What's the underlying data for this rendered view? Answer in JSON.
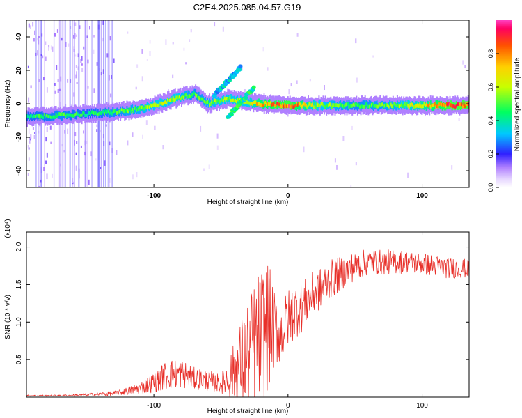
{
  "title": "C2E4.2025.085.04.57.G19",
  "chart_data": [
    {
      "type": "heatmap",
      "title": "C2E4.2025.085.04.57.G19",
      "xlabel": "Height of straight line (km)",
      "ylabel": "Frequency (Hz)",
      "xlim": [
        -195,
        135
      ],
      "ylim": [
        -50,
        50
      ],
      "xticks": [
        -100,
        0,
        100
      ],
      "yticks": [
        -40,
        -20,
        0,
        20,
        40
      ],
      "colorbar": {
        "label": "Normalized spectral amplitude",
        "range": [
          0,
          1
        ],
        "ticks": [
          0.0,
          0.2,
          0.4,
          0.6,
          0.8
        ]
      },
      "ridge": [
        {
          "x": -195,
          "f": -8,
          "a": 0.45
        },
        {
          "x": -170,
          "f": -7,
          "a": 0.5
        },
        {
          "x": -150,
          "f": -6,
          "a": 0.45
        },
        {
          "x": -130,
          "f": -5,
          "a": 0.5
        },
        {
          "x": -110,
          "f": -3,
          "a": 0.55
        },
        {
          "x": -100,
          "f": -1,
          "a": 0.6
        },
        {
          "x": -85,
          "f": 3,
          "a": 0.6
        },
        {
          "x": -70,
          "f": 6,
          "a": 0.5
        },
        {
          "x": -60,
          "f": 0,
          "a": 0.55
        },
        {
          "x": -45,
          "f": 3,
          "a": 0.6
        },
        {
          "x": -30,
          "f": 1,
          "a": 0.6
        },
        {
          "x": -20,
          "f": 0,
          "a": 0.8
        },
        {
          "x": 0,
          "f": -1,
          "a": 0.9
        },
        {
          "x": 20,
          "f": -1,
          "a": 0.6
        },
        {
          "x": 50,
          "f": -1,
          "a": 0.5
        },
        {
          "x": 80,
          "f": -1,
          "a": 0.55
        },
        {
          "x": 100,
          "f": -1,
          "a": 0.7
        },
        {
          "x": 120,
          "f": -1,
          "a": 0.9
        },
        {
          "x": 135,
          "f": -1,
          "a": 0.9
        }
      ],
      "branches": [
        {
          "x": [
            -55,
            -35
          ],
          "f": [
            5,
            22
          ],
          "a": 0.35
        },
        {
          "x": [
            -45,
            -25
          ],
          "f": [
            -8,
            10
          ],
          "a": 0.45
        }
      ]
    },
    {
      "type": "line",
      "title": "",
      "xlabel": "Height of straight line (km)",
      "ylabel": "SNR (10 * v/v)",
      "unit": "(x10⁴)",
      "xlim": [
        -195,
        135
      ],
      "ylim": [
        0,
        2.2
      ],
      "xticks": [
        -100,
        0,
        100
      ],
      "yticks": [
        0.5,
        1.0,
        1.5,
        2.0
      ],
      "series": [
        {
          "name": "SNR",
          "color": "#e8302a",
          "x": [
            -195,
            -170,
            -150,
            -130,
            -120,
            -110,
            -100,
            -90,
            -80,
            -70,
            -60,
            -50,
            -45,
            -40,
            -35,
            -30,
            -25,
            -20,
            -15,
            -10,
            -5,
            0,
            5,
            10,
            15,
            20,
            25,
            30,
            35,
            40,
            45,
            50,
            60,
            70,
            80,
            90,
            100,
            110,
            120,
            130,
            135
          ],
          "values": [
            0.02,
            0.02,
            0.03,
            0.05,
            0.08,
            0.12,
            0.2,
            0.3,
            0.32,
            0.25,
            0.22,
            0.18,
            0.25,
            0.35,
            0.45,
            0.55,
            0.7,
            0.85,
            0.95,
            0.9,
            0.85,
            1.05,
            1.15,
            1.2,
            1.3,
            1.4,
            1.45,
            1.55,
            1.6,
            1.65,
            1.7,
            1.75,
            1.8,
            1.8,
            1.8,
            1.8,
            1.78,
            1.75,
            1.72,
            1.72,
            1.7
          ],
          "jitter": [
            0.01,
            0.01,
            0.02,
            0.03,
            0.05,
            0.08,
            0.14,
            0.2,
            0.2,
            0.15,
            0.14,
            0.12,
            0.25,
            0.4,
            0.6,
            0.75,
            0.85,
            0.9,
            0.9,
            0.5,
            0.4,
            0.4,
            0.38,
            0.35,
            0.3,
            0.3,
            0.28,
            0.26,
            0.25,
            0.22,
            0.2,
            0.2,
            0.17,
            0.17,
            0.16,
            0.15,
            0.15,
            0.14,
            0.14,
            0.13,
            0.12
          ]
        }
      ]
    }
  ]
}
